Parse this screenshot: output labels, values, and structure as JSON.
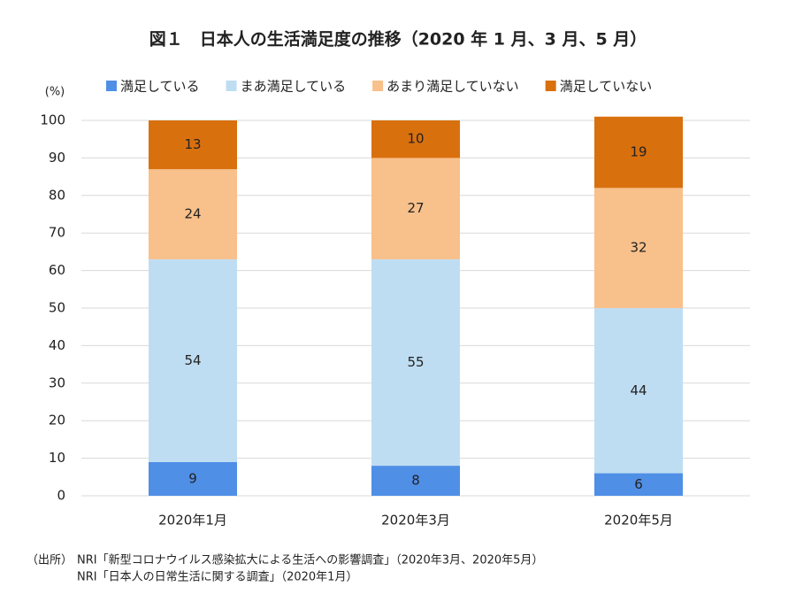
{
  "chart_data": {
    "type": "stacked_bar",
    "title": "図１　日本人の生活満足度の推移（2020 年 1 月、3 月、5 月）",
    "y_unit_label": "(%)",
    "categories": [
      "2020年1月",
      "2020年3月",
      "2020年5月"
    ],
    "series": [
      {
        "name": "満足している",
        "color": "#4f8fe6",
        "values": [
          9,
          8,
          6
        ]
      },
      {
        "name": "まあ満足している",
        "color": "#bfddf2",
        "values": [
          54,
          55,
          44
        ]
      },
      {
        "name": "あまり満足していない",
        "color": "#f8c08a",
        "values": [
          24,
          27,
          32
        ]
      },
      {
        "name": "満足していない",
        "color": "#d9700e",
        "values": [
          13,
          10,
          19
        ]
      }
    ],
    "ylim": [
      0,
      100
    ],
    "yticks": [
      0,
      10,
      20,
      30,
      40,
      50,
      60,
      70,
      80,
      90,
      100
    ],
    "grid": true,
    "legend": "top",
    "source_label": "（出所）",
    "source_lines": [
      "NRI「新型コロナウイルス感染拡大による生活への影響調査」（2020年3月、2020年5月）",
      "NRI「日本人の日常生活に関する調査」（2020年1月）"
    ]
  }
}
